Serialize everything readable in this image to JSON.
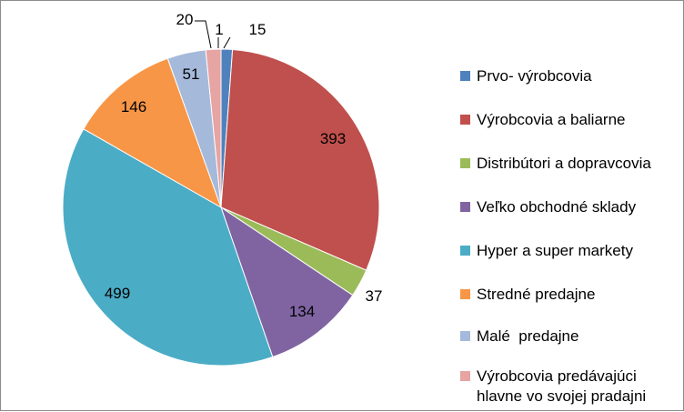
{
  "chart_data": {
    "type": "pie",
    "title": "",
    "legend_position": "right",
    "slices": [
      {
        "label": "Prvo- výrobcovia",
        "value": 15,
        "value_label": "15",
        "color": "#4F81BD"
      },
      {
        "label": "Výrobcovia a baliarne",
        "value": 393,
        "value_label": "393",
        "color": "#C0504D"
      },
      {
        "label": "Distribútori a dopravcovia",
        "value": 37,
        "value_label": "37",
        "color": "#9BBB59"
      },
      {
        "label": "Veľko obchodné sklady",
        "value": 134,
        "value_label": "134",
        "color": "#8064A2"
      },
      {
        "label": "Hyper a super markety",
        "value": 499,
        "value_label": "499",
        "color": "#4BACC6"
      },
      {
        "label": "Stredné predajne",
        "value": 146,
        "value_label": "146",
        "color": "#F79646"
      },
      {
        "label": "Malé  predajne",
        "value": 51,
        "value_label": "51",
        "color": "#A5B9DB"
      },
      {
        "label": "Výrobcovia predávajúci hlavne vo svojej pradajni",
        "value": 20,
        "value_label": "20",
        "color": "#E6A4A2"
      }
    ],
    "extra_labels": [
      {
        "text": "1"
      }
    ]
  }
}
